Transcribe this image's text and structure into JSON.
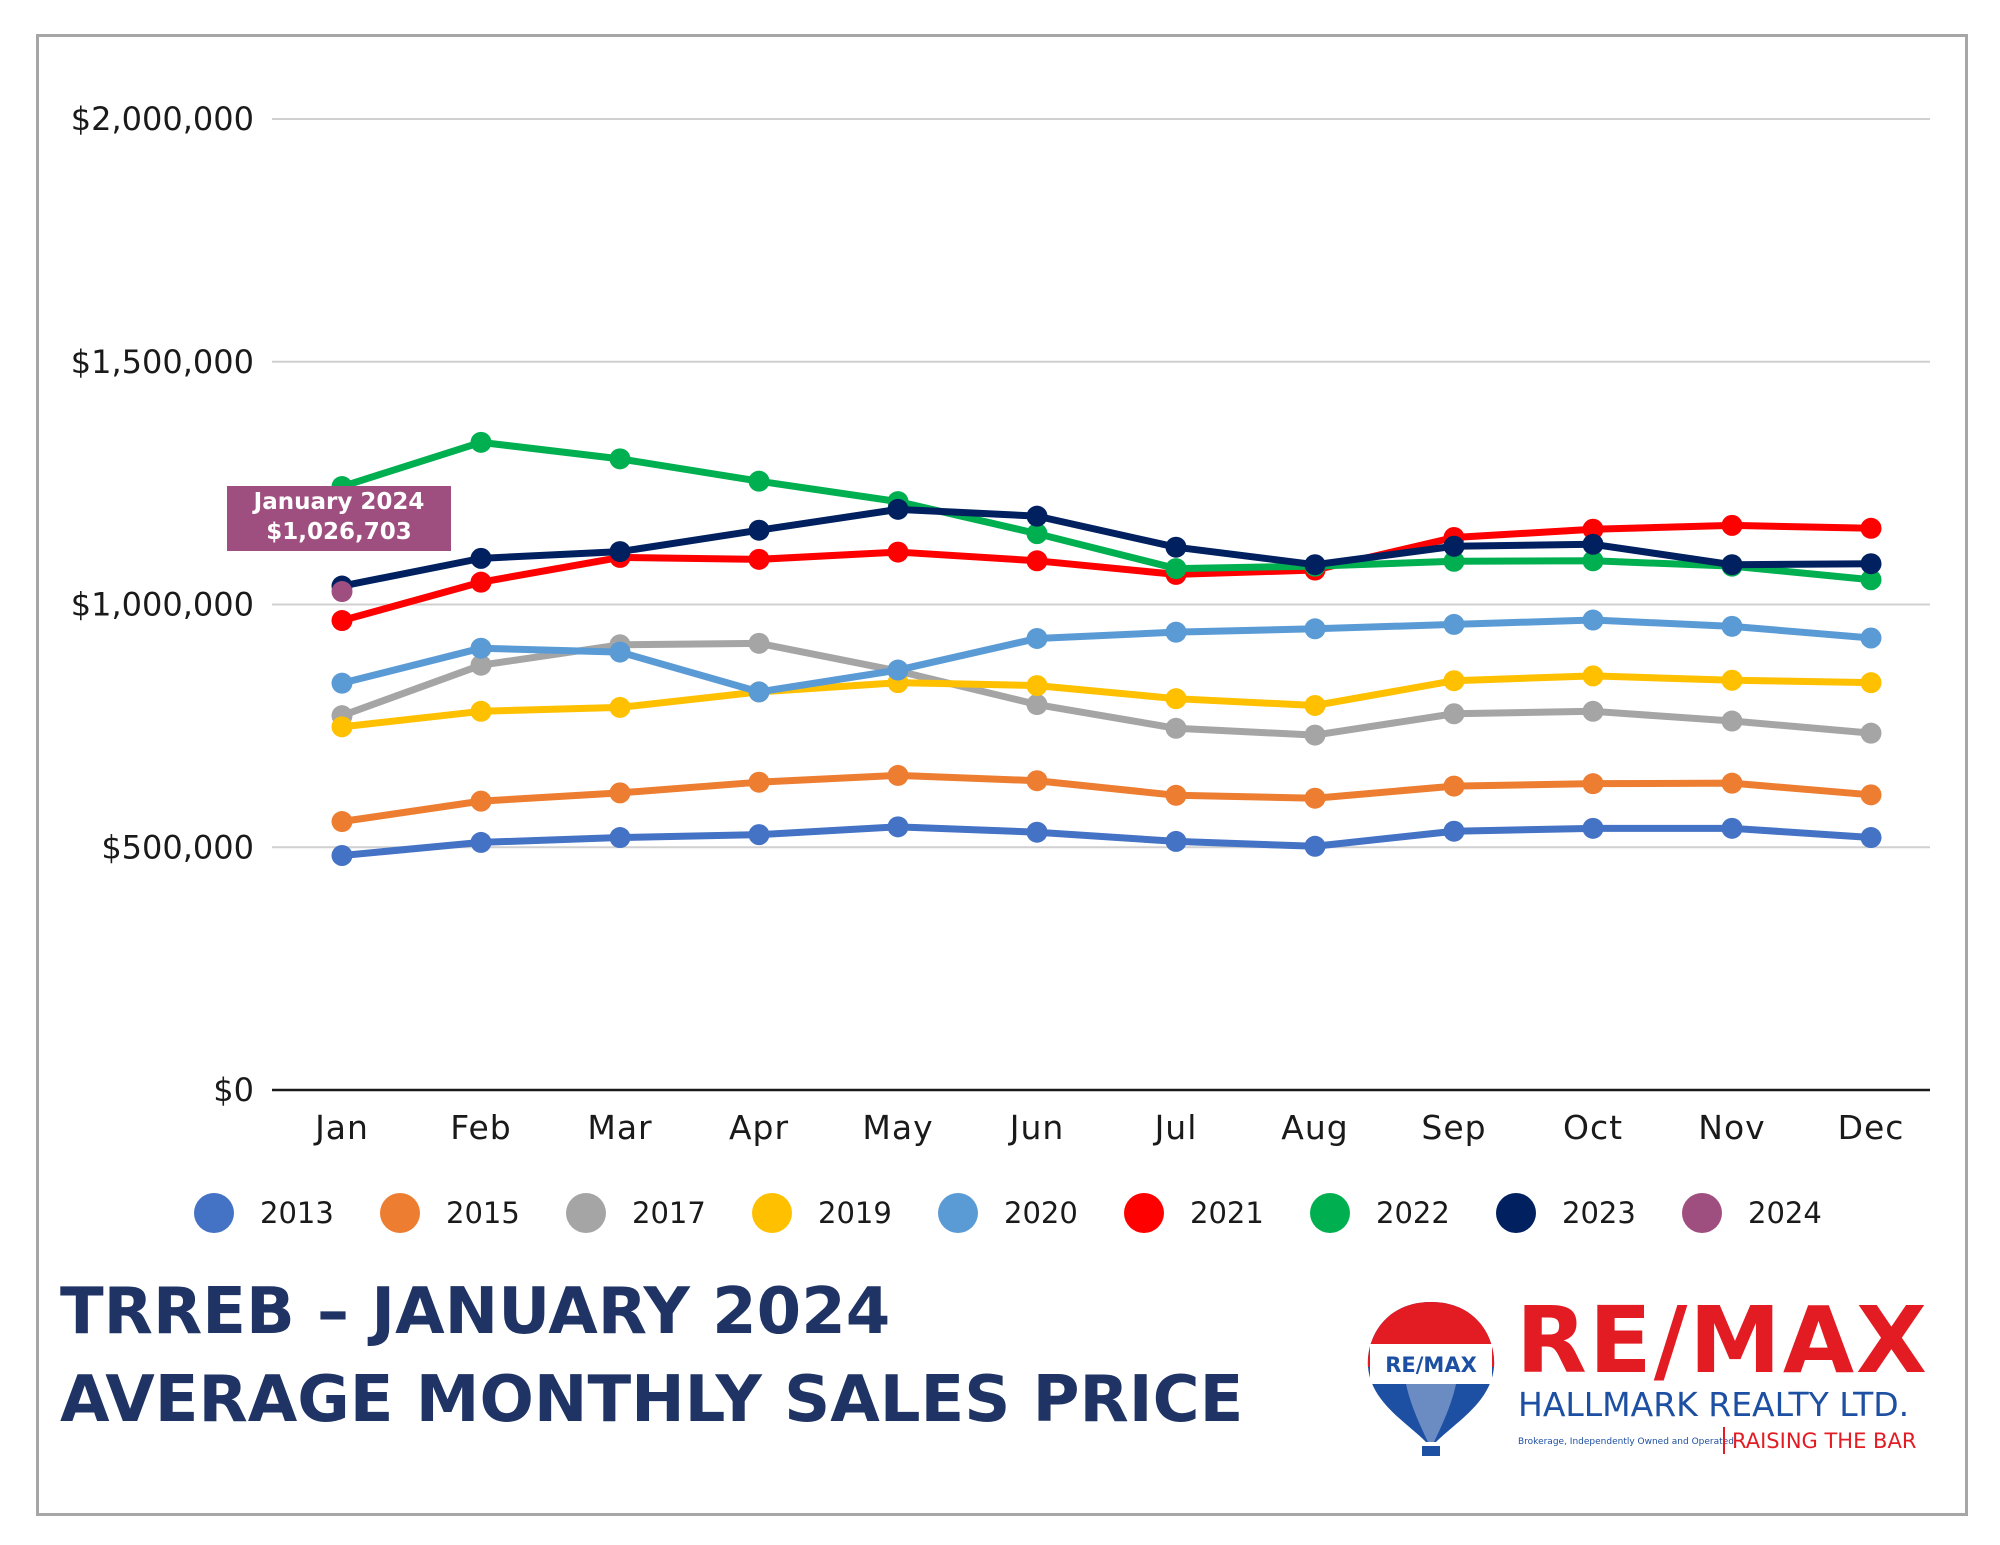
{
  "chart_data": {
    "type": "line",
    "title": "",
    "xlabel": "",
    "ylabel": "",
    "categories": [
      "Jan",
      "Feb",
      "Mar",
      "Apr",
      "May",
      "Jun",
      "Jul",
      "Aug",
      "Sep",
      "Oct",
      "Nov",
      "Dec"
    ],
    "ylim": [
      0,
      2000000
    ],
    "yticks": [
      {
        "value": 0,
        "label": "$0"
      },
      {
        "value": 500000,
        "label": "$500,000"
      },
      {
        "value": 1000000,
        "label": "$1,000,000"
      },
      {
        "value": 1500000,
        "label": "$1,500,000"
      },
      {
        "value": 2000000,
        "label": "$2,000,000"
      }
    ],
    "grid": true,
    "legend_position": "bottom",
    "series": [
      {
        "name": "2013",
        "color": "#4472c4",
        "values": [
          483000,
          510000,
          520000,
          526000,
          542000,
          531000,
          512000,
          502000,
          533000,
          539000,
          539000,
          520000
        ]
      },
      {
        "name": "2015",
        "color": "#ed7d31",
        "values": [
          553000,
          595000,
          612000,
          634000,
          648000,
          637000,
          607000,
          601000,
          626000,
          631000,
          632000,
          608000
        ]
      },
      {
        "name": "2017",
        "color": "#a5a5a5",
        "values": [
          771000,
          875000,
          917000,
          920000,
          863000,
          794000,
          745000,
          731000,
          775000,
          780000,
          760000,
          735000
        ]
      },
      {
        "name": "2019",
        "color": "#ffc000",
        "values": [
          748000,
          780000,
          788000,
          820000,
          839000,
          833000,
          806000,
          792000,
          843000,
          853000,
          844000,
          839000
        ]
      },
      {
        "name": "2020",
        "color": "#5b9bd5",
        "values": [
          838000,
          910000,
          902000,
          820000,
          865000,
          930000,
          943000,
          950000,
          959000,
          968000,
          955000,
          931000
        ]
      },
      {
        "name": "2021",
        "color": "#ff0000",
        "values": [
          967000,
          1046000,
          1097000,
          1093000,
          1108000,
          1090000,
          1062000,
          1071000,
          1138000,
          1155000,
          1163000,
          1157000
        ]
      },
      {
        "name": "2022",
        "color": "#00b050",
        "values": [
          1243000,
          1334000,
          1300000,
          1254000,
          1212000,
          1146000,
          1074000,
          1079000,
          1089000,
          1090000,
          1079000,
          1051000
        ]
      },
      {
        "name": "2023",
        "color": "#002060",
        "values": [
          1038000,
          1095000,
          1109000,
          1153000,
          1196000,
          1182000,
          1118000,
          1082000,
          1120000,
          1124000,
          1082000,
          1084000
        ]
      },
      {
        "name": "2024",
        "color": "#9e4f7f",
        "values": [
          1026703,
          null,
          null,
          null,
          null,
          null,
          null,
          null,
          null,
          null,
          null,
          null
        ]
      }
    ],
    "annotation": {
      "series": "2024",
      "category": "Jan",
      "line1": "January 2024",
      "line2": "$1,026,703",
      "color": "#9e4f7f"
    }
  },
  "heading": {
    "line1": "TRREB – JANUARY 2024",
    "line2": "AVERAGE MONTHLY SALES PRICE"
  },
  "logo": {
    "balloon_text": "RE/MAX",
    "brand": "RE/MAX",
    "company": "HALLMARK REALTY LTD.",
    "fine_print": "Brokerage, Independently Owned and Operated",
    "tagline": "RAISING THE BAR",
    "brand_color": "#e31b23",
    "secondary_color": "#1d4fa3"
  }
}
